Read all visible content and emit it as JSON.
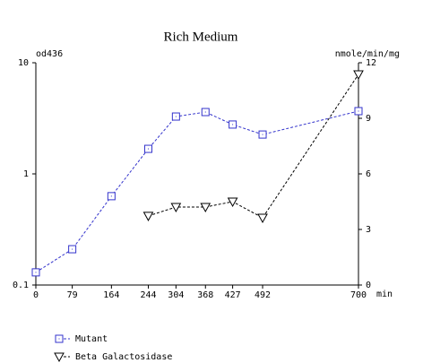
{
  "chart_data": {
    "type": "line",
    "title": "Rich Medium",
    "y_label": "od436",
    "y2_label": "nmole/min/mg",
    "x_label": "min",
    "x": [
      0,
      79,
      164,
      244,
      304,
      368,
      427,
      492,
      700
    ],
    "xlim": [
      0,
      700
    ],
    "xticks": [
      0,
      79,
      164,
      244,
      304,
      368,
      427,
      492,
      700
    ],
    "ylim": [
      0.1,
      10
    ],
    "yticks": [
      0.1,
      1,
      10
    ],
    "ylog": true,
    "y2lim": [
      0,
      12
    ],
    "y2ticks": [
      0,
      3,
      6,
      9,
      12
    ],
    "legend": "below",
    "grid": false,
    "series": [
      {
        "name": "Mutant",
        "color": "#3333cc",
        "marker": "square",
        "axis": "y",
        "values": [
          0.13,
          0.21,
          0.63,
          1.68,
          3.28,
          3.6,
          2.78,
          2.26,
          3.67
        ]
      },
      {
        "name": "Beta Galactosidase",
        "color": "#000000",
        "marker": "triangle-down",
        "axis": "y2",
        "values": [
          null,
          null,
          null,
          3.73,
          4.21,
          4.21,
          4.5,
          3.63,
          11.37
        ]
      }
    ]
  }
}
